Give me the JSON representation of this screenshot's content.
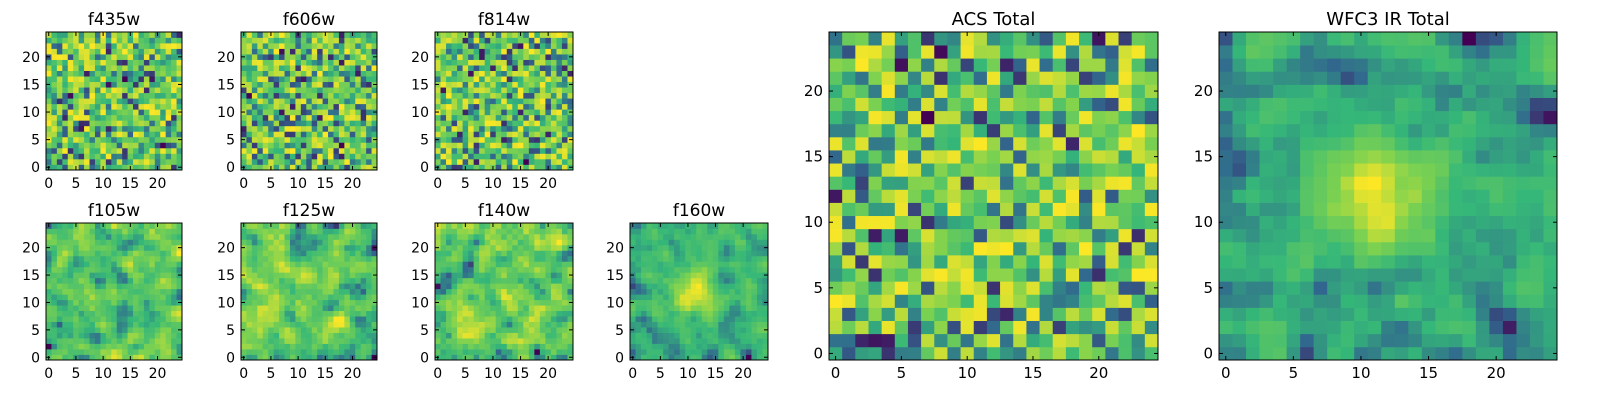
{
  "figure_title": "",
  "colormap": [
    "#440154",
    "#31688e",
    "#35b779",
    "#7ad151",
    "#fde725"
  ],
  "chart_data": [
    {
      "type": "heatmap",
      "title": "f435w",
      "grid": [
        25,
        25
      ],
      "xlim": [
        -0.5,
        24.5
      ],
      "ylim": [
        -0.5,
        24.5
      ],
      "xticks": [
        0,
        5,
        10,
        15,
        20
      ],
      "yticks": [
        0,
        5,
        10,
        15,
        20
      ],
      "xtick_labels": [
        "0",
        "5",
        "10",
        "15",
        "20"
      ],
      "ytick_labels": [
        "0",
        "5",
        "10",
        "15",
        "20"
      ],
      "pattern": "noise",
      "seed": 11
    },
    {
      "type": "heatmap",
      "title": "f606w",
      "grid": [
        25,
        25
      ],
      "xlim": [
        -0.5,
        24.5
      ],
      "ylim": [
        -0.5,
        24.5
      ],
      "xticks": [
        0,
        5,
        10,
        15,
        20
      ],
      "yticks": [
        0,
        5,
        10,
        15,
        20
      ],
      "xtick_labels": [
        "0",
        "5",
        "10",
        "15",
        "20"
      ],
      "ytick_labels": [
        "0",
        "5",
        "10",
        "15",
        "20"
      ],
      "pattern": "noise",
      "seed": 23
    },
    {
      "type": "heatmap",
      "title": "f814w",
      "grid": [
        25,
        25
      ],
      "xlim": [
        -0.5,
        24.5
      ],
      "ylim": [
        -0.5,
        24.5
      ],
      "xticks": [
        0,
        5,
        10,
        15,
        20
      ],
      "yticks": [
        0,
        5,
        10,
        15,
        20
      ],
      "xtick_labels": [
        "0",
        "5",
        "10",
        "15",
        "20"
      ],
      "ytick_labels": [
        "0",
        "5",
        "10",
        "15",
        "20"
      ],
      "pattern": "noise",
      "seed": 37
    },
    {
      "type": "heatmap",
      "title": "f105w",
      "grid": [
        25,
        25
      ],
      "xlim": [
        -0.5,
        24.5
      ],
      "ylim": [
        -0.5,
        24.5
      ],
      "xticks": [
        0,
        5,
        10,
        15,
        20
      ],
      "yticks": [
        0,
        5,
        10,
        15,
        20
      ],
      "xtick_labels": [
        "0",
        "5",
        "10",
        "15",
        "20"
      ],
      "ytick_labels": [
        "0",
        "5",
        "10",
        "15",
        "20"
      ],
      "pattern": "smooth",
      "seed": 41
    },
    {
      "type": "heatmap",
      "title": "f125w",
      "grid": [
        25,
        25
      ],
      "xlim": [
        -0.5,
        24.5
      ],
      "ylim": [
        -0.5,
        24.5
      ],
      "xticks": [
        0,
        5,
        10,
        15,
        20
      ],
      "yticks": [
        0,
        5,
        10,
        15,
        20
      ],
      "xtick_labels": [
        "0",
        "5",
        "10",
        "15",
        "20"
      ],
      "ytick_labels": [
        "0",
        "5",
        "10",
        "15",
        "20"
      ],
      "pattern": "smooth",
      "seed": 53
    },
    {
      "type": "heatmap",
      "title": "f140w",
      "grid": [
        25,
        25
      ],
      "xlim": [
        -0.5,
        24.5
      ],
      "ylim": [
        -0.5,
        24.5
      ],
      "xticks": [
        0,
        5,
        10,
        15,
        20
      ],
      "yticks": [
        0,
        5,
        10,
        15,
        20
      ],
      "xtick_labels": [
        "0",
        "5",
        "10",
        "15",
        "20"
      ],
      "ytick_labels": [
        "0",
        "5",
        "10",
        "15",
        "20"
      ],
      "pattern": "smooth",
      "seed": 67
    },
    {
      "type": "heatmap",
      "title": "f160w",
      "grid": [
        25,
        25
      ],
      "xlim": [
        -0.5,
        24.5
      ],
      "ylim": [
        -0.5,
        24.5
      ],
      "xticks": [
        0,
        5,
        10,
        15,
        20
      ],
      "yticks": [
        0,
        5,
        10,
        15,
        20
      ],
      "xtick_labels": [
        "0",
        "5",
        "10",
        "15",
        "20"
      ],
      "ytick_labels": [
        "0",
        "5",
        "10",
        "15",
        "20"
      ],
      "pattern": "source",
      "source_center": [
        11,
        12
      ],
      "seed": 79
    },
    {
      "type": "heatmap",
      "title": "ACS Total",
      "grid": [
        25,
        25
      ],
      "xlim": [
        -0.5,
        24.5
      ],
      "ylim": [
        -0.5,
        24.5
      ],
      "xticks": [
        0,
        5,
        10,
        15,
        20
      ],
      "yticks": [
        0,
        5,
        10,
        15,
        20
      ],
      "xtick_labels": [
        "0",
        "5",
        "10",
        "15",
        "20"
      ],
      "ytick_labels": [
        "0",
        "5",
        "10",
        "15",
        "20"
      ],
      "pattern": "noise",
      "seed": 97
    },
    {
      "type": "heatmap",
      "title": "WFC3 IR Total",
      "grid": [
        25,
        25
      ],
      "xlim": [
        -0.5,
        24.5
      ],
      "ylim": [
        -0.5,
        24.5
      ],
      "xticks": [
        0,
        5,
        10,
        15,
        20
      ],
      "yticks": [
        0,
        5,
        10,
        15,
        20
      ],
      "xtick_labels": [
        "0",
        "5",
        "10",
        "15",
        "20"
      ],
      "ytick_labels": [
        "0",
        "5",
        "10",
        "15",
        "20"
      ],
      "pattern": "source",
      "source_center": [
        11,
        12
      ],
      "seed": 113
    }
  ]
}
